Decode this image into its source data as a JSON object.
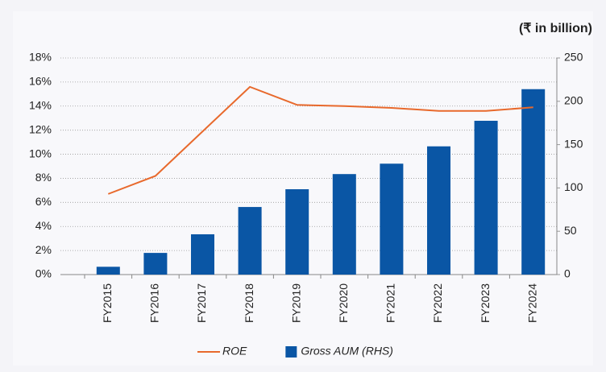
{
  "chart_data": {
    "type": "bar_line",
    "unit_label": "(₹ in billion)",
    "categories": [
      "FY2015",
      "FY2016",
      "FY2017",
      "FY2018",
      "FY2019",
      "FY2020",
      "FY2021",
      "FY2022",
      "FY2023",
      "FY2024"
    ],
    "series": [
      {
        "name": "ROE",
        "type": "line",
        "axis": "y",
        "color": "#e8692c",
        "values": [
          6.7,
          8.2,
          11.9,
          15.6,
          14.1,
          14.0,
          13.85,
          13.6,
          13.6,
          13.9
        ]
      },
      {
        "name": "Gross AUM (RHS)",
        "type": "bar",
        "axis": "y2",
        "color": "#0a56a5",
        "values": [
          9,
          25,
          46.5,
          78,
          98.5,
          116,
          128,
          148,
          177.5,
          214
        ]
      }
    ],
    "ylim": [
      0,
      18
    ],
    "yticks": [
      {
        "value": 0,
        "label": "0%"
      },
      {
        "value": 2,
        "label": "2%"
      },
      {
        "value": 4,
        "label": "4%"
      },
      {
        "value": 6,
        "label": "6%"
      },
      {
        "value": 8,
        "label": "8%"
      },
      {
        "value": 10,
        "label": "10%"
      },
      {
        "value": 12,
        "label": "12%"
      },
      {
        "value": 14,
        "label": "14%"
      },
      {
        "value": 16,
        "label": "16%"
      },
      {
        "value": 18,
        "label": "18%"
      }
    ],
    "y2lim": [
      0,
      250
    ],
    "y2ticks": [
      0,
      50,
      100,
      150,
      200,
      250
    ],
    "grid": true
  }
}
